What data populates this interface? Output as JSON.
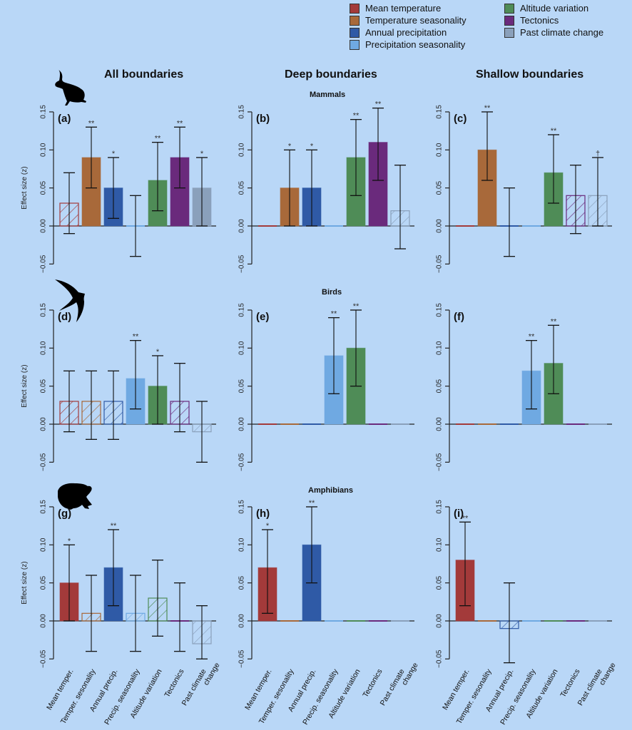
{
  "legend": {
    "items": [
      {
        "label": "Mean temperature",
        "color": "#a33a3a"
      },
      {
        "label": "Temperature seasonality",
        "color": "#a8693a"
      },
      {
        "label": "Annual precipitation",
        "color": "#2f5aa6"
      },
      {
        "label": "Precipitation seasonality",
        "color": "#6fa9e2"
      },
      {
        "label": "Altitude variation",
        "color": "#4f8c57"
      },
      {
        "label": "Tectonics",
        "color": "#6a2a7c"
      },
      {
        "label": "Past climate change",
        "color": "#8aa0bb"
      }
    ]
  },
  "column_headers": [
    "All boundaries",
    "Deep boundaries",
    "Shallow boundaries"
  ],
  "row_headers": [
    "Mammals",
    "Birds",
    "Amphibians"
  ],
  "animal_icons": [
    "hare-icon",
    "swift-icon",
    "frog-icon"
  ],
  "chart_data": {
    "type": "bar",
    "ylabel": "Effect size (z)",
    "ylim": [
      -0.05,
      0.15
    ],
    "yticks": [
      "-0.05",
      "0.00",
      "0.05",
      "0.10",
      "0.15"
    ],
    "categories": [
      "Mean temper.",
      "Temper. sesonality",
      "Annual precip.",
      "Precip. seasonality",
      "Altitude variation",
      "Tectonics",
      "Past climate change"
    ],
    "category_lines": [
      [
        "Mean temper."
      ],
      [
        "Temper. sesonality"
      ],
      [
        "Annual precip."
      ],
      [
        "Precip. seasonality"
      ],
      [
        "Altitude variation"
      ],
      [
        "Tectonics"
      ],
      [
        "Past climate",
        "change"
      ]
    ],
    "note": "hatched bars = non-significant; error bars = confidence interval; ** / * / † significance markers",
    "panels": [
      {
        "id": "(a)",
        "row": 0,
        "col": 0,
        "values": [
          0.03,
          0.09,
          0.05,
          0,
          0.06,
          0.09,
          0.05
        ],
        "lower": [
          -0.01,
          0.05,
          0.01,
          -0.04,
          0.02,
          0.05,
          0
        ],
        "upper": [
          0.07,
          0.13,
          0.09,
          0.04,
          0.11,
          0.13,
          0.09
        ],
        "hatched": [
          true,
          false,
          false,
          false,
          false,
          false,
          false
        ],
        "sig": [
          "",
          "**",
          "*",
          "",
          "**",
          "**",
          "*"
        ],
        "ci_shown": [
          true,
          true,
          true,
          true,
          true,
          true,
          true
        ]
      },
      {
        "id": "(b)",
        "row": 0,
        "col": 1,
        "values": [
          0,
          0.05,
          0.05,
          0,
          0.09,
          0.11,
          0.02
        ],
        "lower": [
          0,
          0,
          0,
          0,
          0.04,
          0.06,
          -0.03
        ],
        "upper": [
          0,
          0.1,
          0.1,
          0,
          0.14,
          0.155,
          0.08
        ],
        "hatched": [
          false,
          false,
          false,
          false,
          false,
          false,
          true
        ],
        "sig": [
          "",
          "*",
          "*",
          "",
          "**",
          "**",
          ""
        ],
        "ci_shown": [
          false,
          true,
          true,
          false,
          true,
          true,
          true
        ]
      },
      {
        "id": "(c)",
        "row": 0,
        "col": 2,
        "values": [
          0,
          0.1,
          0,
          0,
          0.07,
          0.04,
          0.04
        ],
        "lower": [
          0,
          0.06,
          -0.04,
          0,
          0.03,
          -0.01,
          0
        ],
        "upper": [
          0,
          0.15,
          0.05,
          0,
          0.12,
          0.08,
          0.09
        ],
        "hatched": [
          false,
          false,
          false,
          false,
          false,
          true,
          true
        ],
        "sig": [
          "",
          "**",
          "",
          "",
          "**",
          "",
          "†"
        ],
        "ci_shown": [
          false,
          true,
          true,
          false,
          true,
          true,
          true
        ]
      },
      {
        "id": "(d)",
        "row": 1,
        "col": 0,
        "values": [
          0.03,
          0.03,
          0.03,
          0.06,
          0.05,
          0.03,
          -0.01
        ],
        "lower": [
          -0.01,
          -0.02,
          -0.02,
          0.02,
          0,
          -0.01,
          -0.05
        ],
        "upper": [
          0.07,
          0.07,
          0.07,
          0.11,
          0.09,
          0.08,
          0.03
        ],
        "hatched": [
          true,
          true,
          true,
          false,
          false,
          true,
          true
        ],
        "sig": [
          "",
          "",
          "",
          "**",
          "*",
          "",
          ""
        ],
        "ci_shown": [
          true,
          true,
          true,
          true,
          true,
          true,
          true
        ]
      },
      {
        "id": "(e)",
        "row": 1,
        "col": 1,
        "values": [
          0,
          0,
          0,
          0.09,
          0.1,
          0,
          0
        ],
        "lower": [
          0,
          0,
          0,
          0.04,
          0.05,
          0,
          0
        ],
        "upper": [
          0,
          0,
          0,
          0.14,
          0.15,
          0,
          0
        ],
        "hatched": [
          false,
          false,
          false,
          false,
          false,
          false,
          false
        ],
        "sig": [
          "",
          "",
          "",
          "**",
          "**",
          "",
          ""
        ],
        "ci_shown": [
          false,
          false,
          false,
          true,
          true,
          false,
          false
        ]
      },
      {
        "id": "(f)",
        "row": 1,
        "col": 2,
        "values": [
          0,
          0,
          0,
          0.07,
          0.08,
          0,
          0
        ],
        "lower": [
          0,
          0,
          0,
          0.02,
          0.04,
          0,
          0
        ],
        "upper": [
          0,
          0,
          0,
          0.11,
          0.13,
          0,
          0
        ],
        "hatched": [
          false,
          false,
          false,
          false,
          false,
          false,
          false
        ],
        "sig": [
          "",
          "",
          "",
          "**",
          "**",
          "",
          ""
        ],
        "ci_shown": [
          false,
          false,
          false,
          true,
          true,
          false,
          false
        ]
      },
      {
        "id": "(g)",
        "row": 2,
        "col": 0,
        "values": [
          0.05,
          0.01,
          0.07,
          0.01,
          0.03,
          0,
          -0.03
        ],
        "lower": [
          0,
          -0.04,
          0.02,
          -0.04,
          -0.02,
          -0.04,
          -0.05
        ],
        "upper": [
          0.1,
          0.06,
          0.12,
          0.06,
          0.08,
          0.05,
          0.02
        ],
        "hatched": [
          false,
          true,
          false,
          true,
          true,
          false,
          true
        ],
        "sig": [
          "*",
          "",
          "**",
          "",
          "",
          "",
          ""
        ],
        "ci_shown": [
          true,
          true,
          true,
          true,
          true,
          true,
          true
        ]
      },
      {
        "id": "(h)",
        "row": 2,
        "col": 1,
        "values": [
          0.07,
          0,
          0.1,
          0,
          0,
          0,
          0
        ],
        "lower": [
          0.01,
          0,
          0.05,
          0,
          0,
          0,
          0
        ],
        "upper": [
          0.12,
          0,
          0.15,
          0,
          0,
          0,
          0
        ],
        "hatched": [
          false,
          false,
          false,
          false,
          false,
          false,
          false
        ],
        "sig": [
          "*",
          "",
          "**",
          "",
          "",
          "",
          ""
        ],
        "ci_shown": [
          true,
          false,
          true,
          false,
          false,
          false,
          false
        ]
      },
      {
        "id": "(i)",
        "row": 2,
        "col": 2,
        "values": [
          0.08,
          0,
          -0.01,
          0,
          0,
          0,
          0
        ],
        "lower": [
          0.02,
          0,
          -0.055,
          0,
          0,
          0,
          0
        ],
        "upper": [
          0.13,
          0,
          0.05,
          0,
          0,
          0,
          0
        ],
        "hatched": [
          false,
          false,
          true,
          false,
          false,
          false,
          false
        ],
        "sig": [
          "**",
          "",
          "",
          "",
          "",
          "",
          ""
        ],
        "ci_shown": [
          true,
          false,
          true,
          false,
          false,
          false,
          false
        ]
      }
    ]
  }
}
